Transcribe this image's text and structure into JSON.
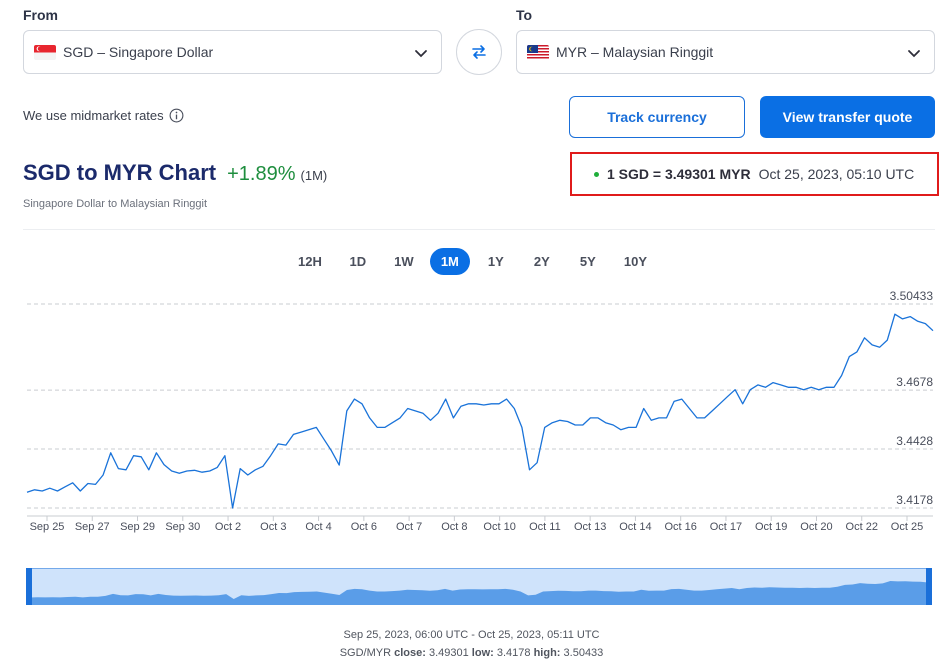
{
  "from": {
    "label": "From",
    "value": "SGD – Singapore Dollar"
  },
  "to": {
    "label": "To",
    "value": "MYR – Malaysian Ringgit"
  },
  "midmarket_text": "We use midmarket rates",
  "buttons": {
    "track": "Track currency",
    "quote": "View transfer quote"
  },
  "chart_header": {
    "title": "SGD to MYR Chart",
    "change": "+1.89%",
    "period": "(1M)",
    "subtitle": "Singapore Dollar to Malaysian Ringgit"
  },
  "rate": {
    "text": "1 SGD = 3.49301 MYR",
    "time": "Oct 25, 2023, 05:10 UTC"
  },
  "ranges": [
    {
      "label": "12H",
      "active": false
    },
    {
      "label": "1D",
      "active": false
    },
    {
      "label": "1W",
      "active": false
    },
    {
      "label": "1M",
      "active": true
    },
    {
      "label": "1Y",
      "active": false
    },
    {
      "label": "2Y",
      "active": false
    },
    {
      "label": "5Y",
      "active": false
    },
    {
      "label": "10Y",
      "active": false
    }
  ],
  "footer": {
    "range_text": "Sep 25, 2023, 06:00 UTC - Oct 25, 2023, 05:11 UTC",
    "pair": "SGD/MYR",
    "close_label": "close:",
    "close": "3.49301",
    "low_label": "low:",
    "low": "3.4178",
    "high_label": "high:",
    "high": "3.50433"
  },
  "colors": {
    "accent": "#0a6fe4",
    "line": "#1a73d9",
    "positive": "#1e8e3e",
    "highlight_border": "#e01b1b"
  },
  "chart_data": {
    "type": "line",
    "yticks": [
      "3.50433",
      "3.4678",
      "3.4428",
      "3.4178"
    ],
    "ylim": [
      3.4178,
      3.50433
    ],
    "xticks": [
      "Sep 25",
      "Sep 27",
      "Sep 29",
      "Sep 30",
      "Oct 2",
      "Oct 3",
      "Oct 4",
      "Oct 6",
      "Oct 7",
      "Oct 8",
      "Oct 10",
      "Oct 11",
      "Oct 13",
      "Oct 14",
      "Oct 16",
      "Oct 17",
      "Oct 19",
      "Oct 20",
      "Oct 22",
      "Oct 25"
    ],
    "series": [
      {
        "values": [
          3.4245,
          3.4255,
          3.425,
          3.4262,
          3.425,
          3.4268,
          3.4285,
          3.425,
          3.4282,
          3.4278,
          3.4318,
          3.4412,
          3.4345,
          3.434,
          3.44,
          3.4395,
          3.434,
          3.4412,
          3.4362,
          3.4335,
          3.4325,
          3.4335,
          3.4338,
          3.433,
          3.4335,
          3.435,
          3.44,
          3.4178,
          3.4345,
          3.4318,
          3.434,
          3.4355,
          3.44,
          3.445,
          3.4445,
          3.449,
          3.45,
          3.451,
          3.452,
          3.447,
          3.442,
          3.436,
          3.459,
          3.464,
          3.462,
          3.456,
          3.452,
          3.452,
          3.454,
          3.456,
          3.46,
          3.459,
          3.458,
          3.455,
          3.458,
          3.464,
          3.456,
          3.461,
          3.462,
          3.462,
          3.4615,
          3.462,
          3.462,
          3.464,
          3.46,
          3.452,
          3.434,
          3.437,
          3.452,
          3.454,
          3.455,
          3.4545,
          3.453,
          3.453,
          3.456,
          3.456,
          3.454,
          3.453,
          3.451,
          3.452,
          3.452,
          3.46,
          3.455,
          3.456,
          3.456,
          3.463,
          3.464,
          3.46,
          3.456,
          3.456,
          3.459,
          3.462,
          3.465,
          3.468,
          3.462,
          3.468,
          3.47,
          3.469,
          3.471,
          3.47,
          3.469,
          3.469,
          3.468,
          3.469,
          3.468,
          3.469,
          3.469,
          3.474,
          3.482,
          3.484,
          3.49,
          3.487,
          3.486,
          3.489,
          3.5,
          3.498,
          3.499,
          3.497,
          3.496,
          3.493
        ]
      }
    ],
    "title": "",
    "xlabel": "",
    "ylabel": "",
    "grid": true
  }
}
